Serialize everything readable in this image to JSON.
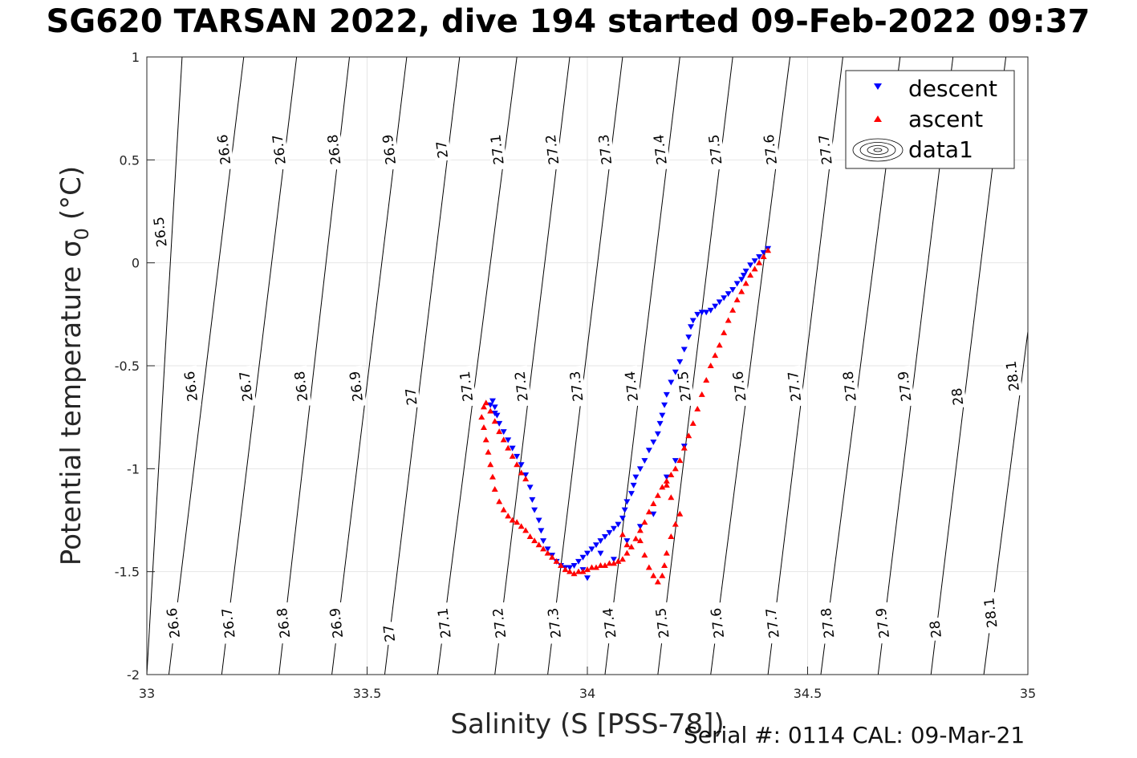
{
  "title": "SG620 TARSAN 2022, dive 194 started 09-Feb-2022 09:37",
  "footer": "Serial #: 0114  CAL: 09-Mar-21",
  "chart_data": {
    "type": "scatter",
    "xlabel": "Salinity (S [PSS-78])",
    "ylabel": "Potential temperature σ",
    "ylabel_subscript": "0",
    "ylabel_unit": "(°C)",
    "xlim": [
      33,
      35
    ],
    "ylim": [
      -2,
      1
    ],
    "xticks": [
      33,
      33.5,
      34,
      34.5,
      35
    ],
    "xtick_labels": [
      "33",
      "33.5",
      "34",
      "34.5",
      "35"
    ],
    "yticks": [
      -2,
      -1.5,
      -1,
      -0.5,
      0,
      0.5,
      1
    ],
    "ytick_labels": [
      "-2",
      "-1.5",
      "-1",
      "-0.5",
      "0",
      "0.5",
      "1"
    ],
    "grid": true,
    "legend_position": "top-right",
    "colors": {
      "descent": "#0000ff",
      "ascent": "#ff0000",
      "contour": "#000000"
    },
    "density_contours": {
      "levels": [
        26.5,
        26.6,
        26.7,
        26.8,
        26.9,
        27.0,
        27.1,
        27.2,
        27.3,
        27.4,
        27.5,
        27.6,
        27.7,
        27.8,
        27.9,
        28.0,
        28.1
      ],
      "crossings": [
        {
          "label": "26.5",
          "s_top": 33.08,
          "s_bottom": 33.0
        },
        {
          "label": "26.6",
          "s_top": 33.22,
          "s_bottom": 33.05
        },
        {
          "label": "26.7",
          "s_top": 33.34,
          "s_bottom": 33.17
        },
        {
          "label": "26.8",
          "s_top": 33.46,
          "s_bottom": 33.3
        },
        {
          "label": "26.9",
          "s_top": 33.59,
          "s_bottom": 33.42
        },
        {
          "label": "27",
          "s_top": 33.71,
          "s_bottom": 33.54
        },
        {
          "label": "27.1",
          "s_top": 33.84,
          "s_bottom": 33.66
        },
        {
          "label": "27.2",
          "s_top": 33.96,
          "s_bottom": 33.79
        },
        {
          "label": "27.3",
          "s_top": 34.08,
          "s_bottom": 33.91
        },
        {
          "label": "27.4",
          "s_top": 34.21,
          "s_bottom": 34.04
        },
        {
          "label": "27.5",
          "s_top": 34.33,
          "s_bottom": 34.16
        },
        {
          "label": "27.6",
          "s_top": 34.46,
          "s_bottom": 34.28
        },
        {
          "label": "27.7",
          "s_top": 34.58,
          "s_bottom": 34.41
        },
        {
          "label": "27.8",
          "s_top": 34.71,
          "s_bottom": 34.53
        },
        {
          "label": "27.9",
          "s_top": 34.83,
          "s_bottom": 34.66
        },
        {
          "label": "28",
          "s_top": 34.95,
          "s_bottom": 34.78
        },
        {
          "label": "28.1",
          "s_top": 35.08,
          "s_bottom": 34.9
        }
      ],
      "labels_top": [
        {
          "text": "26.5",
          "s": 33.03,
          "t": 0.15
        },
        {
          "text": "26.6",
          "s": 33.175,
          "t": 0.55
        },
        {
          "text": "26.7",
          "s": 33.3,
          "t": 0.55
        },
        {
          "text": "26.8",
          "s": 33.425,
          "t": 0.55
        },
        {
          "text": "26.9",
          "s": 33.55,
          "t": 0.55
        },
        {
          "text": "27",
          "s": 33.67,
          "t": 0.55
        },
        {
          "text": "27.1",
          "s": 33.795,
          "t": 0.55
        },
        {
          "text": "27.2",
          "s": 33.92,
          "t": 0.55
        },
        {
          "text": "27.3",
          "s": 34.04,
          "t": 0.55
        },
        {
          "text": "27.4",
          "s": 34.165,
          "t": 0.55
        },
        {
          "text": "27.5",
          "s": 34.29,
          "t": 0.55
        },
        {
          "text": "27.6",
          "s": 34.415,
          "t": 0.55
        },
        {
          "text": "27.7",
          "s": 34.54,
          "t": 0.55
        }
      ],
      "labels_mid": [
        {
          "text": "26.6",
          "s": 33.1,
          "t": -0.6
        },
        {
          "text": "26.7",
          "s": 33.225,
          "t": -0.6
        },
        {
          "text": "26.8",
          "s": 33.35,
          "t": -0.6
        },
        {
          "text": "26.9",
          "s": 33.475,
          "t": -0.6
        },
        {
          "text": "27",
          "s": 33.6,
          "t": -0.65
        },
        {
          "text": "27.1",
          "s": 33.725,
          "t": -0.6
        },
        {
          "text": "27.2",
          "s": 33.85,
          "t": -0.6
        },
        {
          "text": "27.3",
          "s": 33.975,
          "t": -0.6
        },
        {
          "text": "27.4",
          "s": 34.1,
          "t": -0.6
        },
        {
          "text": "27.5",
          "s": 34.22,
          "t": -0.6
        },
        {
          "text": "27.6",
          "s": 34.345,
          "t": -0.6
        },
        {
          "text": "27.7",
          "s": 34.47,
          "t": -0.6
        },
        {
          "text": "27.8",
          "s": 34.595,
          "t": -0.6
        },
        {
          "text": "27.9",
          "s": 34.72,
          "t": -0.6
        },
        {
          "text": "28",
          "s": 34.84,
          "t": -0.65
        },
        {
          "text": "28.1",
          "s": 34.965,
          "t": -0.55
        }
      ],
      "labels_bottom": [
        {
          "text": "26.6",
          "s": 33.06,
          "t": -1.75
        },
        {
          "text": "26.7",
          "s": 33.185,
          "t": -1.75
        },
        {
          "text": "26.8",
          "s": 33.31,
          "t": -1.75
        },
        {
          "text": "26.9",
          "s": 33.43,
          "t": -1.75
        },
        {
          "text": "27",
          "s": 33.55,
          "t": -1.8
        },
        {
          "text": "27.1",
          "s": 33.675,
          "t": -1.75
        },
        {
          "text": "27.2",
          "s": 33.8,
          "t": -1.75
        },
        {
          "text": "27.3",
          "s": 33.925,
          "t": -1.75
        },
        {
          "text": "27.4",
          "s": 34.05,
          "t": -1.75
        },
        {
          "text": "27.5",
          "s": 34.17,
          "t": -1.75
        },
        {
          "text": "27.6",
          "s": 34.295,
          "t": -1.75
        },
        {
          "text": "27.7",
          "s": 34.42,
          "t": -1.75
        },
        {
          "text": "27.8",
          "s": 34.545,
          "t": -1.75
        },
        {
          "text": "27.9",
          "s": 34.67,
          "t": -1.75
        },
        {
          "text": "28",
          "s": 34.79,
          "t": -1.78
        },
        {
          "text": "28.1",
          "s": 34.915,
          "t": -1.7
        }
      ]
    },
    "series": [
      {
        "name": "descent",
        "marker": "triangle-down",
        "color": "#0000ff",
        "points": [
          [
            34.41,
            0.07
          ],
          [
            34.4,
            0.05
          ],
          [
            34.39,
            0.03
          ],
          [
            34.38,
            0.01
          ],
          [
            34.37,
            -0.01
          ],
          [
            34.36,
            -0.04
          ],
          [
            34.355,
            -0.06
          ],
          [
            34.35,
            -0.08
          ],
          [
            34.34,
            -0.1
          ],
          [
            34.33,
            -0.13
          ],
          [
            34.32,
            -0.15
          ],
          [
            34.31,
            -0.17
          ],
          [
            34.3,
            -0.19
          ],
          [
            34.29,
            -0.21
          ],
          [
            34.28,
            -0.23
          ],
          [
            34.27,
            -0.24
          ],
          [
            34.26,
            -0.24
          ],
          [
            34.25,
            -0.25
          ],
          [
            34.24,
            -0.28
          ],
          [
            34.235,
            -0.31
          ],
          [
            34.23,
            -0.36
          ],
          [
            34.22,
            -0.42
          ],
          [
            34.21,
            -0.48
          ],
          [
            34.2,
            -0.53
          ],
          [
            34.19,
            -0.58
          ],
          [
            34.18,
            -0.64
          ],
          [
            34.175,
            -0.69
          ],
          [
            34.17,
            -0.74
          ],
          [
            34.165,
            -0.78
          ],
          [
            34.16,
            -0.83
          ],
          [
            34.15,
            -0.87
          ],
          [
            34.14,
            -0.91
          ],
          [
            34.13,
            -0.96
          ],
          [
            34.12,
            -1.0
          ],
          [
            34.11,
            -1.04
          ],
          [
            34.105,
            -1.08
          ],
          [
            34.1,
            -1.12
          ],
          [
            34.09,
            -1.16
          ],
          [
            34.085,
            -1.2
          ],
          [
            34.08,
            -1.24
          ],
          [
            34.07,
            -1.27
          ],
          [
            34.06,
            -1.29
          ],
          [
            34.05,
            -1.31
          ],
          [
            34.04,
            -1.33
          ],
          [
            34.03,
            -1.35
          ],
          [
            34.02,
            -1.37
          ],
          [
            34.01,
            -1.39
          ],
          [
            34.0,
            -1.41
          ],
          [
            33.99,
            -1.43
          ],
          [
            33.98,
            -1.45
          ],
          [
            33.97,
            -1.47
          ],
          [
            33.96,
            -1.48
          ],
          [
            33.95,
            -1.48
          ],
          [
            33.94,
            -1.47
          ],
          [
            33.93,
            -1.45
          ],
          [
            33.92,
            -1.42
          ],
          [
            33.91,
            -1.39
          ],
          [
            33.9,
            -1.35
          ],
          [
            33.895,
            -1.3
          ],
          [
            33.89,
            -1.25
          ],
          [
            33.88,
            -1.2
          ],
          [
            33.875,
            -1.15
          ],
          [
            33.87,
            -1.09
          ],
          [
            33.86,
            -1.03
          ],
          [
            33.85,
            -0.98
          ],
          [
            33.84,
            -0.94
          ],
          [
            33.83,
            -0.9
          ],
          [
            33.82,
            -0.86
          ],
          [
            33.81,
            -0.82
          ],
          [
            33.8,
            -0.78
          ],
          [
            33.795,
            -0.74
          ],
          [
            33.79,
            -0.7
          ],
          [
            33.785,
            -0.67
          ],
          [
            33.78,
            -0.69
          ],
          [
            33.79,
            -0.73
          ],
          [
            34.0,
            -1.53
          ],
          [
            33.99,
            -1.49
          ],
          [
            34.03,
            -1.41
          ],
          [
            34.06,
            -1.44
          ],
          [
            34.09,
            -1.35
          ],
          [
            34.12,
            -1.28
          ],
          [
            34.15,
            -1.22
          ],
          [
            34.18,
            -1.04
          ],
          [
            34.2,
            -0.96
          ],
          [
            34.22,
            -0.89
          ]
        ]
      },
      {
        "name": "ascent",
        "marker": "triangle-up",
        "color": "#ff0000",
        "points": [
          [
            34.41,
            0.06
          ],
          [
            34.4,
            0.03
          ],
          [
            34.39,
            0.0
          ],
          [
            34.38,
            -0.03
          ],
          [
            34.37,
            -0.06
          ],
          [
            34.36,
            -0.1
          ],
          [
            34.35,
            -0.14
          ],
          [
            34.34,
            -0.18
          ],
          [
            34.33,
            -0.23
          ],
          [
            34.32,
            -0.28
          ],
          [
            34.31,
            -0.34
          ],
          [
            34.3,
            -0.4
          ],
          [
            34.29,
            -0.45
          ],
          [
            34.28,
            -0.5
          ],
          [
            34.27,
            -0.57
          ],
          [
            34.26,
            -0.64
          ],
          [
            34.25,
            -0.71
          ],
          [
            34.24,
            -0.78
          ],
          [
            34.23,
            -0.84
          ],
          [
            34.22,
            -0.9
          ],
          [
            34.21,
            -0.96
          ],
          [
            34.2,
            -1.0
          ],
          [
            34.19,
            -1.03
          ],
          [
            34.18,
            -1.06
          ],
          [
            34.17,
            -1.09
          ],
          [
            34.16,
            -1.13
          ],
          [
            34.15,
            -1.17
          ],
          [
            34.14,
            -1.21
          ],
          [
            34.13,
            -1.26
          ],
          [
            34.12,
            -1.3
          ],
          [
            34.11,
            -1.34
          ],
          [
            34.1,
            -1.38
          ],
          [
            34.09,
            -1.41
          ],
          [
            34.08,
            -1.44
          ],
          [
            34.07,
            -1.45
          ],
          [
            34.06,
            -1.46
          ],
          [
            34.05,
            -1.46
          ],
          [
            34.04,
            -1.47
          ],
          [
            34.03,
            -1.47
          ],
          [
            34.02,
            -1.48
          ],
          [
            34.01,
            -1.48
          ],
          [
            34.0,
            -1.49
          ],
          [
            33.99,
            -1.5
          ],
          [
            33.98,
            -1.5
          ],
          [
            33.97,
            -1.51
          ],
          [
            33.96,
            -1.5
          ],
          [
            33.95,
            -1.49
          ],
          [
            33.94,
            -1.47
          ],
          [
            33.93,
            -1.45
          ],
          [
            33.92,
            -1.43
          ],
          [
            33.91,
            -1.41
          ],
          [
            33.9,
            -1.39
          ],
          [
            33.89,
            -1.37
          ],
          [
            33.88,
            -1.35
          ],
          [
            33.87,
            -1.33
          ],
          [
            33.86,
            -1.3
          ],
          [
            33.85,
            -1.28
          ],
          [
            33.84,
            -1.26
          ],
          [
            33.83,
            -1.25
          ],
          [
            33.82,
            -1.23
          ],
          [
            33.81,
            -1.2
          ],
          [
            33.8,
            -1.16
          ],
          [
            33.79,
            -1.1
          ],
          [
            33.785,
            -1.04
          ],
          [
            33.78,
            -0.98
          ],
          [
            33.775,
            -0.92
          ],
          [
            33.77,
            -0.86
          ],
          [
            33.765,
            -0.8
          ],
          [
            33.76,
            -0.75
          ],
          [
            33.765,
            -0.7
          ],
          [
            33.77,
            -0.68
          ],
          [
            33.78,
            -0.72
          ],
          [
            33.79,
            -0.77
          ],
          [
            33.8,
            -0.82
          ],
          [
            33.81,
            -0.86
          ],
          [
            33.82,
            -0.9
          ],
          [
            33.83,
            -0.94
          ],
          [
            33.84,
            -0.98
          ],
          [
            33.85,
            -1.02
          ],
          [
            33.86,
            -1.05
          ],
          [
            34.12,
            -1.35
          ],
          [
            34.13,
            -1.42
          ],
          [
            34.14,
            -1.48
          ],
          [
            34.15,
            -1.52
          ],
          [
            34.16,
            -1.55
          ],
          [
            34.17,
            -1.52
          ],
          [
            34.175,
            -1.47
          ],
          [
            34.18,
            -1.41
          ],
          [
            34.19,
            -1.33
          ],
          [
            34.2,
            -1.27
          ],
          [
            34.21,
            -1.22
          ],
          [
            34.19,
            -1.14
          ],
          [
            34.18,
            -1.08
          ],
          [
            34.09,
            -1.37
          ],
          [
            34.08,
            -1.32
          ]
        ]
      }
    ],
    "legend": {
      "entries": [
        "descent",
        "ascent",
        "data1"
      ]
    }
  }
}
